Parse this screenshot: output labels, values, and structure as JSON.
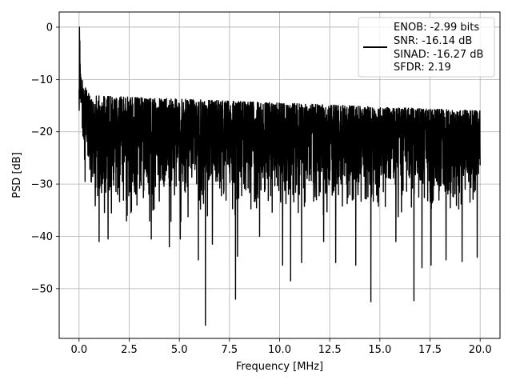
{
  "chart_data": {
    "type": "line",
    "title": "",
    "xlabel": "Frequency [MHz]",
    "ylabel": "PSD [dB]",
    "xlim": [
      -0.99,
      20.99
    ],
    "ylim": [
      -59.5,
      2.9
    ],
    "xticks": [
      0.0,
      2.5,
      5.0,
      7.5,
      10.0,
      12.5,
      15.0,
      17.5,
      20.0
    ],
    "xtick_labels": [
      "0.0",
      "2.5",
      "5.0",
      "7.5",
      "10.0",
      "12.5",
      "15.0",
      "17.5",
      "20.0"
    ],
    "yticks": [
      0,
      -10,
      -20,
      -30,
      -40,
      -50
    ],
    "ytick_labels": [
      "0",
      "−10",
      "−20",
      "−30",
      "−40",
      "−50"
    ],
    "grid": true,
    "legend_position": "upper-right",
    "legend_lines": [
      "ENOB: -2.99 bits",
      "SNR: -16.14 dB",
      "SINAD: -16.27 dB",
      "SFDR: 2.19"
    ],
    "series": [
      {
        "color": "#000000",
        "x_range": [
          0,
          20
        ],
        "peak": {
          "x": 0.02,
          "y": 0
        },
        "noise_band_max": [
          -13,
          -16
        ],
        "noise_band_min": [
          -38,
          -36
        ],
        "spurs": [
          {
            "x": 0.3,
            "y": -29.5
          },
          {
            "x": 1.0,
            "y": -41
          },
          {
            "x": 1.45,
            "y": -40.5
          },
          {
            "x": 3.6,
            "y": -40.5
          },
          {
            "x": 4.5,
            "y": -42
          },
          {
            "x": 5.05,
            "y": -40.5
          },
          {
            "x": 5.95,
            "y": -44.5
          },
          {
            "x": 6.3,
            "y": -57
          },
          {
            "x": 6.65,
            "y": -41.5
          },
          {
            "x": 7.8,
            "y": -52
          },
          {
            "x": 7.9,
            "y": -43.8
          },
          {
            "x": 9.0,
            "y": -40
          },
          {
            "x": 10.15,
            "y": -45.5
          },
          {
            "x": 10.55,
            "y": -48.5
          },
          {
            "x": 11.1,
            "y": -45
          },
          {
            "x": 12.2,
            "y": -41
          },
          {
            "x": 12.8,
            "y": -45
          },
          {
            "x": 13.8,
            "y": -45.5
          },
          {
            "x": 14.55,
            "y": -52.5
          },
          {
            "x": 15.8,
            "y": -41
          },
          {
            "x": 16.7,
            "y": -52.3
          },
          {
            "x": 17.1,
            "y": -46
          },
          {
            "x": 17.55,
            "y": -45.5
          },
          {
            "x": 18.3,
            "y": -44.5
          },
          {
            "x": 19.1,
            "y": -44.8
          },
          {
            "x": 19.85,
            "y": -44
          }
        ]
      }
    ]
  }
}
